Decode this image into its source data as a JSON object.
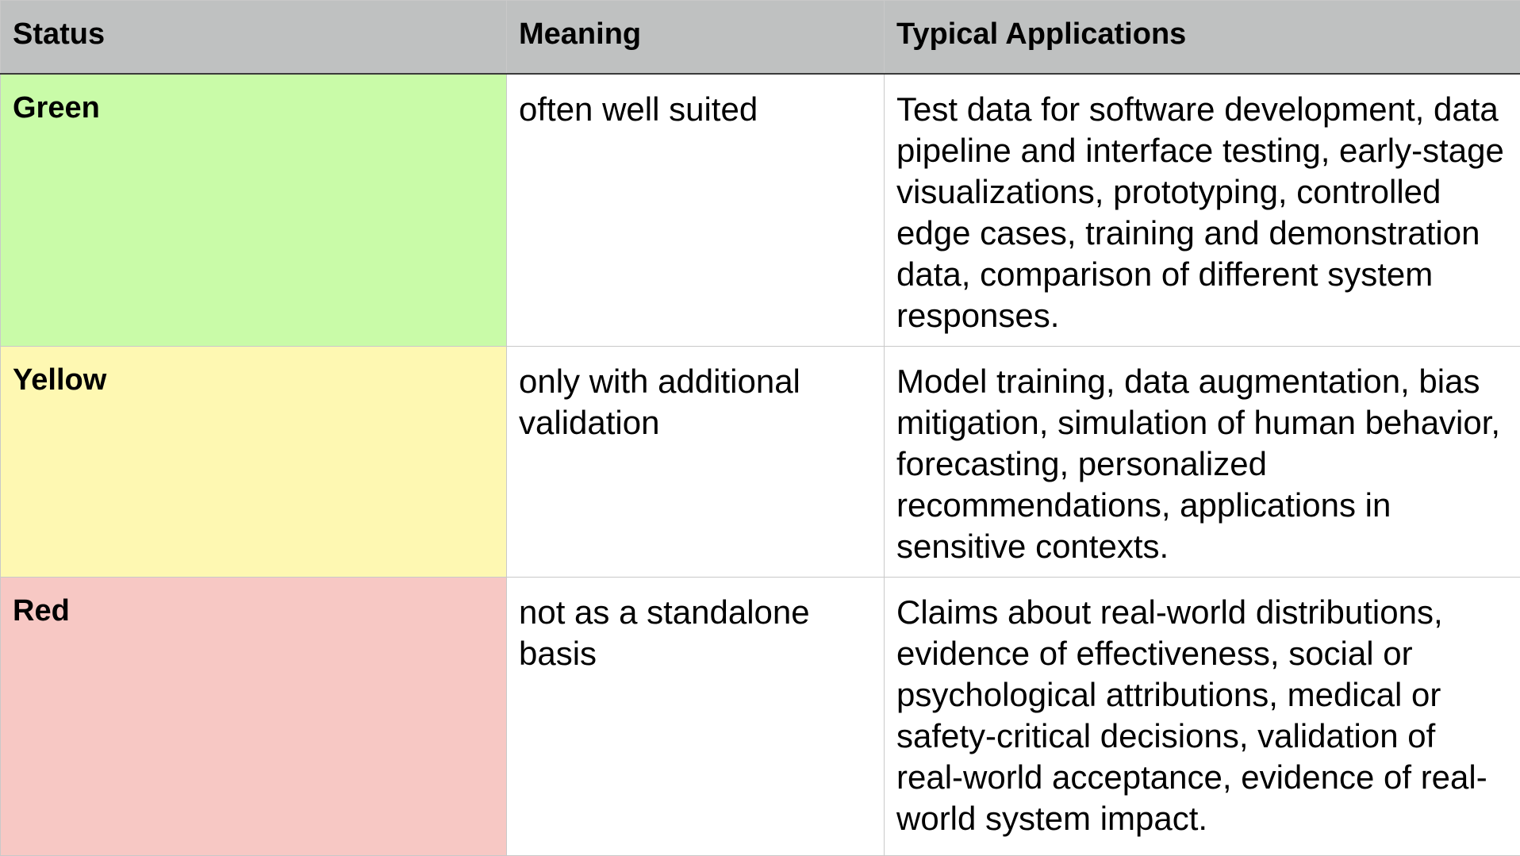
{
  "table": {
    "headers": [
      "Status",
      "Meaning",
      "Typical Applications"
    ],
    "rows": [
      {
        "status": "Green",
        "meaning": "often well suited",
        "applications": "Test data for software development, data pipeline and interface testing, early-stage visualizations, prototyping, controlled edge cases, training and demonstration data, comparison of different system responses.",
        "color": "#c9fba8"
      },
      {
        "status": "Yellow",
        "meaning": "only with additional validation",
        "applications": "Model training, data augmentation, bias mitigation, simulation of human behavior, forecasting, personalized recommendations, applications in sensitive contexts.",
        "color": "#fef8b2"
      },
      {
        "status": "Red",
        "meaning": "not as a standalone basis",
        "applications": "Claims about real-world distributions, evidence of effectiveness, social or psychological attributions, medical or safety-critical decisions, validation of real-world acceptance, evidence of real-world system impact.",
        "color": "#f7c8c4"
      }
    ]
  },
  "colors": {
    "header_bg": "#bfc1c1",
    "grid": "#c9c9c9"
  }
}
